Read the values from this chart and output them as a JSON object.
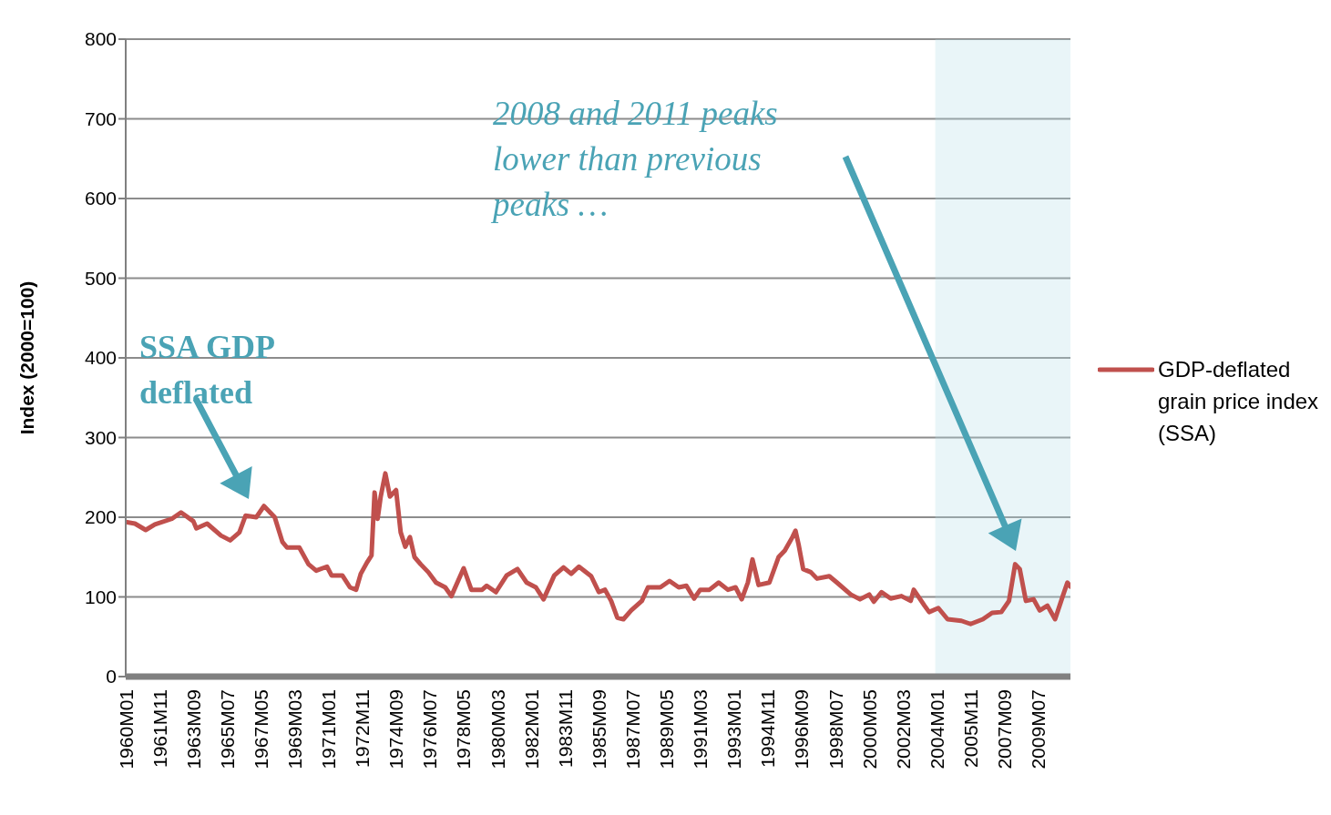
{
  "chart_data": {
    "type": "line",
    "ylabel": "Index (2000=100)",
    "x": [
      "1960-01",
      "1960-07",
      "1961-02",
      "1961-08",
      "1962-07",
      "1963-01",
      "1963-09",
      "1963-11",
      "1964-06",
      "1965-03",
      "1965-09",
      "1966-03",
      "1966-07",
      "1967-02",
      "1967-07",
      "1968-02",
      "1968-07",
      "1968-10",
      "1969-06",
      "1969-12",
      "1970-05",
      "1970-12",
      "1971-03",
      "1971-10",
      "1972-03",
      "1972-07",
      "1972-10",
      "1973-02",
      "1973-05",
      "1973-07",
      "1973-09",
      "1973-11",
      "1974-02",
      "1974-05",
      "1974-09",
      "1974-12",
      "1975-03",
      "1975-06",
      "1975-09",
      "1976-01",
      "1976-06",
      "1976-11",
      "1977-05",
      "1977-09",
      "1978-05",
      "1978-10",
      "1979-05",
      "1979-08",
      "1980-02",
      "1980-09",
      "1981-04",
      "1981-10",
      "1982-04",
      "1982-09",
      "1983-04",
      "1983-10",
      "1984-03",
      "1984-08",
      "1985-04",
      "1985-09",
      "1986-01",
      "1986-05",
      "1986-09",
      "1987-01",
      "1987-06",
      "1988-01",
      "1988-05",
      "1989-01",
      "1989-07",
      "1990-01",
      "1990-06",
      "1990-11",
      "1991-03",
      "1991-09",
      "1992-03",
      "1992-09",
      "1993-02",
      "1993-06",
      "1993-10",
      "1994-01",
      "1994-05",
      "1994-12",
      "1995-06",
      "1995-10",
      "1996-03",
      "1996-05",
      "1996-07",
      "1996-10",
      "1997-03",
      "1997-07",
      "1998-03",
      "1998-08",
      "1999-05",
      "1999-11",
      "2000-05",
      "2000-08",
      "2001-01",
      "2001-07",
      "2002-02",
      "2002-08",
      "2002-10",
      "2003-05",
      "2003-08",
      "2004-02",
      "2004-08",
      "2005-05",
      "2005-11",
      "2006-07",
      "2007-01",
      "2007-07",
      "2007-12",
      "2008-04",
      "2008-07",
      "2008-11",
      "2009-04",
      "2009-08",
      "2010-01",
      "2010-06",
      "2010-11",
      "2011-02",
      "2011-04"
    ],
    "series": [
      {
        "name": "GDP-deflated grain price index (SSA)",
        "color": "#c0504d",
        "values": [
          194,
          192,
          184,
          191,
          198,
          206,
          195,
          186,
          192,
          177,
          171,
          181,
          202,
          200,
          214,
          200,
          169,
          162,
          162,
          141,
          133,
          138,
          127,
          127,
          112,
          109,
          129,
          143,
          152,
          231,
          198,
          226,
          255,
          226,
          234,
          181,
          163,
          175,
          150,
          141,
          131,
          118,
          112,
          101,
          136,
          109,
          109,
          114,
          106,
          127,
          135,
          118,
          112,
          97,
          127,
          137,
          129,
          138,
          126,
          106,
          109,
          95,
          74,
          72,
          83,
          95,
          112,
          112,
          120,
          112,
          114,
          98,
          109,
          109,
          118,
          109,
          112,
          97,
          118,
          147,
          115,
          118,
          150,
          158,
          175,
          183,
          166,
          135,
          131,
          123,
          126,
          118,
          103,
          97,
          103,
          94,
          106,
          98,
          101,
          95,
          109,
          89,
          81,
          86,
          72,
          70,
          66,
          72,
          80,
          81,
          95,
          141,
          135,
          95,
          97,
          83,
          89,
          72,
          101,
          118,
          113
        ]
      }
    ],
    "ylim": [
      0,
      800
    ],
    "yticks": [
      0,
      100,
      200,
      300,
      400,
      500,
      600,
      700,
      800
    ],
    "xlim": [
      "1960-01",
      "2011-04"
    ],
    "xticks": [
      {
        "value": "1960-01",
        "label": "1960M01"
      },
      {
        "value": "1961-11",
        "label": "1961M11"
      },
      {
        "value": "1963-09",
        "label": "1963M09"
      },
      {
        "value": "1965-07",
        "label": "1965M07"
      },
      {
        "value": "1967-05",
        "label": "1967M05"
      },
      {
        "value": "1969-03",
        "label": "1969M03"
      },
      {
        "value": "1971-01",
        "label": "1971M01"
      },
      {
        "value": "1972-11",
        "label": "1972M11"
      },
      {
        "value": "1974-09",
        "label": "1974M09"
      },
      {
        "value": "1976-07",
        "label": "1976M07"
      },
      {
        "value": "1978-05",
        "label": "1978M05"
      },
      {
        "value": "1980-03",
        "label": "1980M03"
      },
      {
        "value": "1982-01",
        "label": "1982M01"
      },
      {
        "value": "1983-11",
        "label": "1983M11"
      },
      {
        "value": "1985-09",
        "label": "1985M09"
      },
      {
        "value": "1987-07",
        "label": "1987M07"
      },
      {
        "value": "1989-05",
        "label": "1989M05"
      },
      {
        "value": "1991-03",
        "label": "1991M03"
      },
      {
        "value": "1993-01",
        "label": "1993M01"
      },
      {
        "value": "1994-11",
        "label": "1994M11"
      },
      {
        "value": "1996-09",
        "label": "1996M09"
      },
      {
        "value": "1998-07",
        "label": "1998M07"
      },
      {
        "value": "2000-05",
        "label": "2000M05"
      },
      {
        "value": "2002-03",
        "label": "2002M03"
      },
      {
        "value": "2004-01",
        "label": "2004M01"
      },
      {
        "value": "2005-11",
        "label": "2005M11"
      },
      {
        "value": "2007-09",
        "label": "2007M09"
      },
      {
        "value": "2009-07",
        "label": "2009M07"
      }
    ],
    "bands": [
      {
        "axis": "x",
        "from": "2003-12",
        "to": "2011-04",
        "color": "#b7dde8"
      }
    ],
    "annotations": [
      "SSA GDP deflated",
      "2008 and 2011 peaks lower than previous peaks …"
    ],
    "grid": "y",
    "legend": "right",
    "marker": "none",
    "line_style": "solid"
  }
}
